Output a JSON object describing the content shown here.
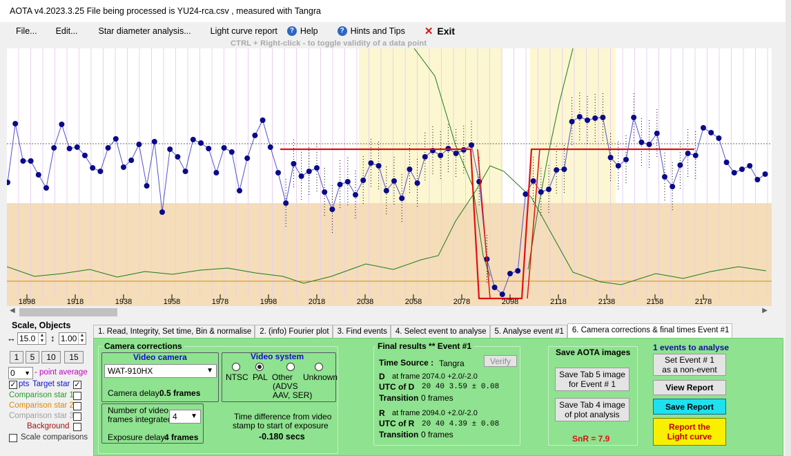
{
  "title": "AOTA v4.2023.3.25    File being processed is  YU24-rca.csv ,  measured with Tangra",
  "menu": {
    "file": "File...",
    "edit": "Edit...",
    "star_diameter": "Star diameter analysis...",
    "light_curve_report": "Light curve report",
    "help": "Help",
    "hints": "Hints and Tips",
    "exit": "Exit"
  },
  "hint": "CTRL + Right-click   -   to toggle validity of a data point",
  "colors": {
    "plot_band": "#f4ddb8",
    "event_zone": "#fcf7d0",
    "data_point": "#0a0a8c",
    "fit_line": "#e01010",
    "comparison_line": "#1b7a1b",
    "background_line": "#e08a00",
    "tab_panel": "#8fe28f"
  },
  "plot": {
    "x_ticks": [
      "1898",
      "1918",
      "1938",
      "1958",
      "1978",
      "1998",
      "2018",
      "2038",
      "2058",
      "2078",
      "2098",
      "2118",
      "2138",
      "2158",
      "2178"
    ]
  },
  "left_panel": {
    "scale_objects": "Scale,  Objects",
    "scale_value": "15.0",
    "scale_value2": "1.00",
    "buttons": [
      "1",
      "5",
      "10",
      "15"
    ],
    "point_avg_value": "0",
    "point_avg_label": "- point average",
    "pts_label": "pts",
    "target_star": "Target star",
    "comp1": "Comparison star 1",
    "comp2": "Comparison star 2",
    "comp3": "Comparison star 3",
    "background": "Background",
    "scale_comparisons": "Scale comparisons"
  },
  "tabs": [
    "1.  Read, Integrity, Set time, Bin & normalise",
    "2. (info)  Fourier plot",
    "3. Find events",
    "4. Select event to analyse",
    "5. Analyse event #1",
    "6. Camera corrections & final times Event #1"
  ],
  "camera": {
    "group_title": "Camera corrections",
    "video_camera_title": "Video camera",
    "camera_model": "WAT-910HX",
    "camera_delay_label": "Camera delay:",
    "camera_delay_value": "0.5 frames",
    "video_system_title": "Video system",
    "ntsc": "NTSC",
    "pal": "PAL",
    "other": "Other",
    "other_detail1": "(ADVS",
    "other_detail2": "AAV, SER)",
    "unknown": "Unknown",
    "frames_integrated_label1": "Number of video",
    "frames_integrated_label2": "frames integrated",
    "frames_integrated_value": "4",
    "exposure_delay_label": "Exposure delay:",
    "exposure_delay_value": "4 frames",
    "time_diff_label1": "Time difference from video",
    "time_diff_label2": "stamp to start of exposure",
    "time_diff_value": "-0.180 secs"
  },
  "final": {
    "title": "Final results  **  Event #1",
    "time_source_label": "Time Source :",
    "time_source_value": "Tangra",
    "verify": "Verify",
    "d_label": "D",
    "d_frame": "at frame 2074.0  +2.0/-2.0",
    "utc_d_label": "UTC of D",
    "utc_d_value": "20  40   3.59  ± 0.08",
    "transition_label": "Transition",
    "transition_d_value": "0 frames",
    "r_label": "R",
    "r_frame": "at frame 2094.0  +2.0/-2.0",
    "utc_r_label": "UTC of R",
    "utc_r_value": "20  40   4.39  ± 0.08",
    "transition_r_value": "0 frames"
  },
  "save": {
    "title": "Save AOTA images",
    "tab5_line1": "Save Tab 5 image",
    "tab5_line2": "for Event # 1",
    "tab4_line1": "Save Tab 4 image",
    "tab4_line2": "of plot analysis",
    "snr": "SnR = 7.9"
  },
  "events": {
    "title": "1 events to analyse",
    "set_event_line1": "Set Event # 1",
    "set_event_line2": "as a non-event",
    "view_report": "View Report",
    "save_report": "Save Report",
    "report_line1": "Report the",
    "report_line2": "Light curve"
  }
}
